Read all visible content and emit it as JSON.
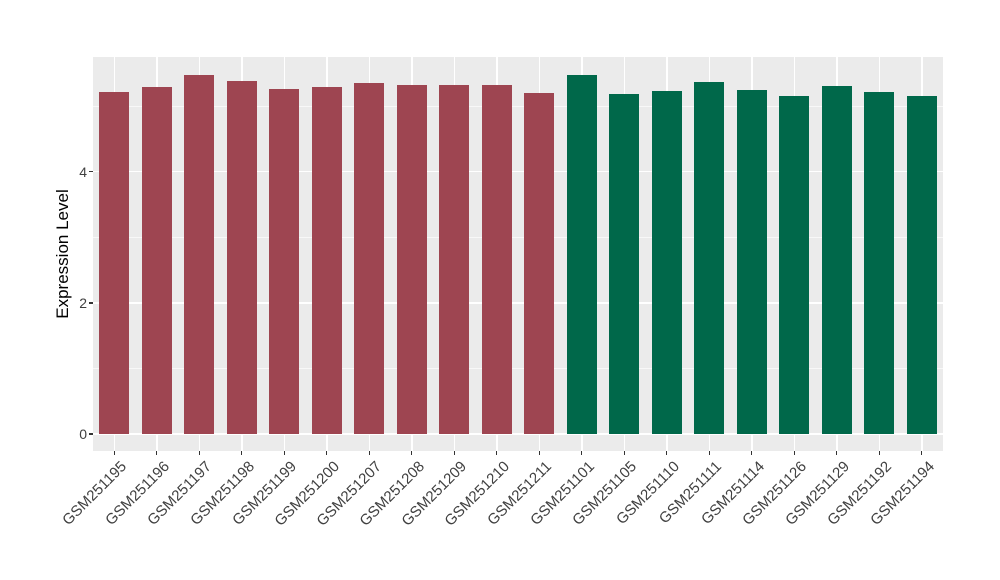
{
  "chart_data": {
    "type": "bar",
    "title": "",
    "xlabel": "",
    "ylabel": "Expression Level",
    "ylim": [
      -0.26,
      5.75
    ],
    "yticks": [
      0,
      2,
      4
    ],
    "minor_yticks": [
      1,
      3,
      5
    ],
    "grid": true,
    "legend": "none",
    "panel_bg": "#EBEBEB",
    "grid_color": "#FFFFFF",
    "categories": [
      "GSM251195",
      "GSM251196",
      "GSM251197",
      "GSM251198",
      "GSM251199",
      "GSM251200",
      "GSM251207",
      "GSM251208",
      "GSM251209",
      "GSM251210",
      "GSM251211",
      "GSM251101",
      "GSM251105",
      "GSM251110",
      "GSM251111",
      "GSM251114",
      "GSM251126",
      "GSM251129",
      "GSM251192",
      "GSM251194"
    ],
    "values": [
      5.22,
      5.3,
      5.48,
      5.39,
      5.26,
      5.3,
      5.36,
      5.33,
      5.33,
      5.33,
      5.2,
      5.47,
      5.19,
      5.23,
      5.37,
      5.24,
      5.16,
      5.31,
      5.22,
      5.15
    ],
    "groups": [
      0,
      0,
      0,
      0,
      0,
      0,
      0,
      0,
      0,
      0,
      0,
      1,
      1,
      1,
      1,
      1,
      1,
      1,
      1,
      1
    ],
    "group_colors": [
      "#9E4551",
      "#00684A"
    ],
    "bar_width_fraction": 0.7,
    "x_label_angle_deg": 45
  }
}
